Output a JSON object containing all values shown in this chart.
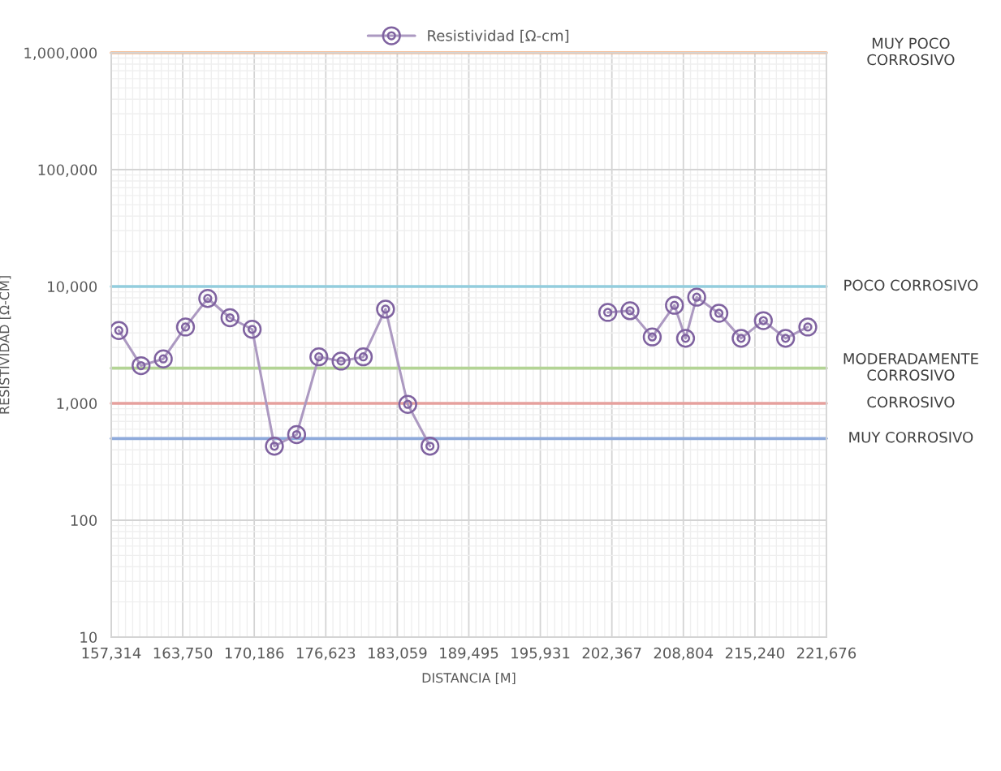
{
  "chart_data": {
    "type": "line",
    "xlabel": "DISTANCIA [M]",
    "ylabel": "RESISTIVIDAD [Ω-CM]",
    "log": "y",
    "grid": true,
    "legend": "top",
    "marker": "circle",
    "line_style": "solid",
    "xlim": [
      157314,
      221676
    ],
    "xticks": [
      {
        "value": 157314,
        "label": "157,314"
      },
      {
        "value": 163750.2,
        "label": "163,750"
      },
      {
        "value": 170186.4,
        "label": "170,186"
      },
      {
        "value": 176622.6,
        "label": "176,623"
      },
      {
        "value": 183058.8,
        "label": "183,059"
      },
      {
        "value": 189495,
        "label": "189,495"
      },
      {
        "value": 195931.2,
        "label": "195,931"
      },
      {
        "value": 202367.4,
        "label": "202,367"
      },
      {
        "value": 208803.6,
        "label": "208,804"
      },
      {
        "value": 215239.8,
        "label": "215,240"
      },
      {
        "value": 221676,
        "label": "221,676"
      }
    ],
    "ylim": [
      10,
      1000000
    ],
    "yticks": [
      10,
      100,
      {
        "value": 1000,
        "label": "1,000"
      },
      {
        "value": 10000,
        "label": "10,000"
      },
      {
        "value": 100000,
        "label": "100,000"
      },
      {
        "value": 1000000,
        "label": "1,000,000"
      }
    ],
    "series": [
      {
        "name": "Resistividad [Ω-cm]",
        "color": "#7f62a0",
        "x": [
          158000,
          160000,
          162000,
          164000,
          166000,
          168000,
          170000,
          172000,
          174000,
          176000,
          178000,
          180000,
          182000,
          184000,
          186000,
          188000,
          202000,
          204000,
          206000,
          208000,
          209000,
          210000,
          212000,
          214000,
          216000,
          218000,
          220000
        ],
        "values": [
          4200,
          2100,
          2400,
          4500,
          7900,
          5400,
          4300,
          430,
          540,
          2500,
          2300,
          2500,
          6400,
          980,
          430,
          null,
          6000,
          6200,
          3700,
          6900,
          3600,
          8100,
          5900,
          3600,
          5100,
          3600,
          4500
        ]
      }
    ],
    "ref_lines": [
      {
        "axis": "y",
        "value": 1000000,
        "label": "MUY POCO\nCORROSIVO",
        "color": "#f4b183"
      },
      {
        "axis": "y",
        "value": 10000,
        "label": "POCO CORROSIVO",
        "color": "#93cddd"
      },
      {
        "axis": "y",
        "value": 2000,
        "label": "MODERADAMENTE\nCORROSIVO",
        "color": "#b3d495"
      },
      {
        "axis": "y",
        "value": 1000,
        "label": "CORROSIVO",
        "color": "#e6a09d"
      },
      {
        "axis": "y",
        "value": 500,
        "label": "MUY CORROSIVO",
        "color": "#8eaadb"
      }
    ]
  }
}
